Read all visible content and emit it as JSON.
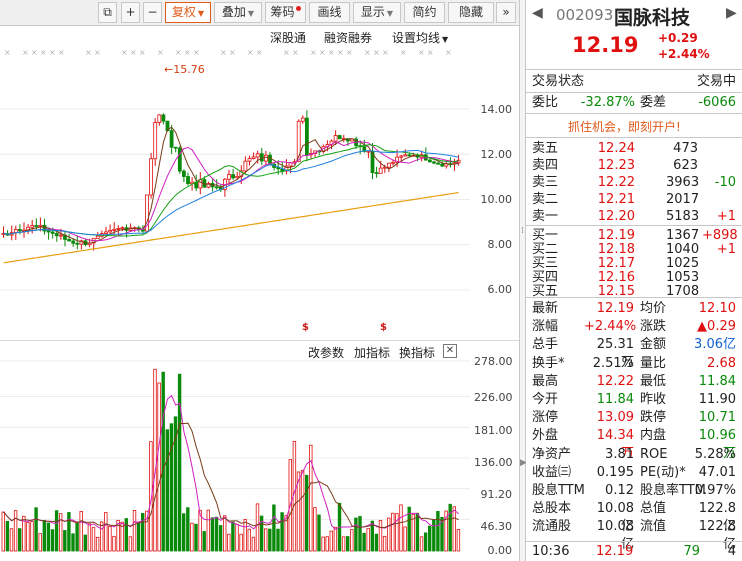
{
  "toolbar": {
    "buttons": [
      "复权",
      "叠加",
      "筹码",
      "画线",
      "显示",
      "简约",
      "隐藏"
    ],
    "expand_glyph": "»",
    "restore_glyph": "⧉",
    "plus": "+",
    "minus": "−"
  },
  "chart_toolbar": {
    "items": [
      "深股通",
      "融资融券",
      "设置均线"
    ]
  },
  "price_chart": {
    "y_ticks": [
      "14.00",
      "12.00",
      "10.00",
      "8.00",
      "6.00"
    ],
    "high_marker": "15.76",
    "colors": {
      "up": "#e01010",
      "down": "#0a8a0a",
      "ma_white": "#7a3c1a",
      "ma_yellow": "#e8a010",
      "ma_magenta": "#d020c0",
      "ma_green": "#10a010",
      "ma_blue": "#2080e0"
    }
  },
  "indicator_bar": {
    "items": [
      "改参数",
      "加指标",
      "换指标"
    ],
    "close": "✕"
  },
  "volume_chart": {
    "y_ticks": [
      "278.00",
      "226.00",
      "181.00",
      "136.00",
      "91.20",
      "46.30",
      "0.00"
    ]
  },
  "quote": {
    "code": "002093",
    "name": "国脉科技",
    "price": "12.19",
    "change": "+0.29",
    "change_pct": "+2.44%",
    "status_label": "交易状态",
    "status_value": "交易中",
    "webi_label": "委比",
    "webi_value": "-32.87%",
    "weicha_label": "委差",
    "weicha_value": "-6066",
    "promo": "抓住机会，即刻开户!",
    "asks": [
      {
        "label": "卖五",
        "price": "12.24",
        "vol": "473",
        "chg": ""
      },
      {
        "label": "卖四",
        "price": "12.23",
        "vol": "623",
        "chg": ""
      },
      {
        "label": "卖三",
        "price": "12.22",
        "vol": "3963",
        "chg": "-10"
      },
      {
        "label": "卖二",
        "price": "12.21",
        "vol": "2017",
        "chg": ""
      },
      {
        "label": "卖一",
        "price": "12.20",
        "vol": "5183",
        "chg": "+1"
      }
    ],
    "bids": [
      {
        "label": "买一",
        "price": "12.19",
        "vol": "1367",
        "chg": "+898"
      },
      {
        "label": "买二",
        "price": "12.18",
        "vol": "1040",
        "chg": "+1"
      },
      {
        "label": "买三",
        "price": "12.17",
        "vol": "1025",
        "chg": ""
      },
      {
        "label": "买四",
        "price": "12.16",
        "vol": "1053",
        "chg": ""
      },
      {
        "label": "买五",
        "price": "12.15",
        "vol": "1708",
        "chg": ""
      }
    ],
    "stats": [
      {
        "l1": "最新",
        "v1": "12.19",
        "c1": "red",
        "l2": "均价",
        "v2": "12.10",
        "c2": "red"
      },
      {
        "l1": "涨幅",
        "v1": "+2.44%",
        "c1": "red",
        "l2": "涨跌",
        "v2": "▲0.29",
        "c2": "red"
      },
      {
        "l1": "总手",
        "v1": "25.31万",
        "c1": "",
        "l2": "金额",
        "v2": "3.06亿",
        "c2": "blue"
      },
      {
        "l1": "换手*",
        "v1": "2.51%",
        "c1": "",
        "l2": "量比",
        "v2": "2.68",
        "c2": "red"
      },
      {
        "l1": "最高",
        "v1": "12.22",
        "c1": "red",
        "l2": "最低",
        "v2": "11.84",
        "c2": "green"
      },
      {
        "l1": "今开",
        "v1": "11.84",
        "c1": "green",
        "l2": "昨收",
        "v2": "11.90",
        "c2": ""
      },
      {
        "l1": "涨停",
        "v1": "13.09",
        "c1": "red",
        "l2": "跌停",
        "v2": "10.71",
        "c2": "green"
      },
      {
        "l1": "外盘",
        "v1": "14.34万",
        "c1": "red",
        "l2": "内盘",
        "v2": "10.96万",
        "c2": "green"
      },
      {
        "l1": "净资产",
        "v1": "3.81",
        "c1": "",
        "l2": "ROE",
        "v2": "5.28%",
        "c2": ""
      },
      {
        "l1": "收益㈢",
        "v1": "0.195",
        "c1": "",
        "l2": "PE(动)*",
        "v2": "47.01",
        "c2": ""
      },
      {
        "l1": "股息TTM",
        "v1": "0.12",
        "c1": "",
        "l2": "股息率TTM",
        "v2": "0.97%",
        "c2": ""
      },
      {
        "l1": "总股本",
        "v1": "10.08亿",
        "c1": "",
        "l2": "总值",
        "v2": "122.8亿",
        "c2": ""
      },
      {
        "l1": "流通股",
        "v1": "10.08亿",
        "c1": "",
        "l2": "流值",
        "v2": "122.8亿",
        "c2": ""
      }
    ],
    "tick": {
      "time": "10:36",
      "price": "12.19",
      "vol": "79",
      "count": "4"
    }
  }
}
